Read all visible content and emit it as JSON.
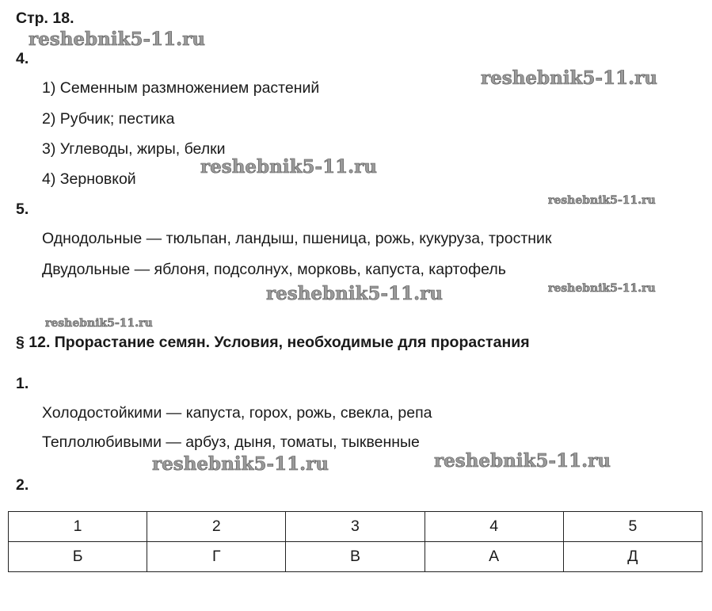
{
  "page_label": "Стр. 18.",
  "watermark": "reshebnik5-11.ru",
  "task4": {
    "number": "4.",
    "items": [
      "1) Семенным размножением растений",
      "2) Рубчик; пестика",
      "3) Углеводы, жиры, белки",
      "4) Зерновкой"
    ]
  },
  "task5": {
    "number": "5.",
    "lines": [
      "Однодольные — тюльпан, ландыш, пшеница, рожь, кукуруза, тростник",
      "Двудольные — яблоня, подсолнух, морковь, капуста, картофель"
    ]
  },
  "section": {
    "title": "§ 12. Прорастание семян. Условия, необходимые для прорастания",
    "task1": {
      "number": "1.",
      "lines": [
        "Холодостойкими — капуста, горох, рожь, свекла, репа",
        "Теплолюбивыми — арбуз, дыня, томаты, тыквенные"
      ]
    },
    "task2": {
      "number": "2.",
      "table": {
        "header": [
          "1",
          "2",
          "3",
          "4",
          "5"
        ],
        "row": [
          "Б",
          "Г",
          "В",
          "А",
          "Д"
        ]
      }
    }
  }
}
